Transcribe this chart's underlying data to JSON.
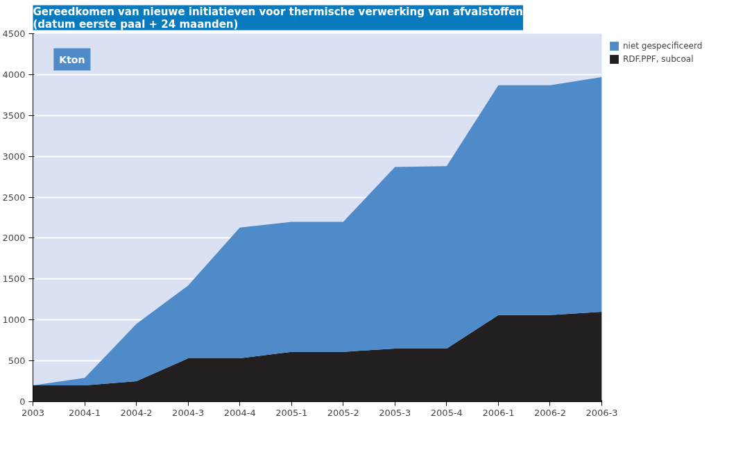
{
  "chart_data": {
    "type": "area",
    "title": "Gereedkomen van nieuwe initiatieven voor thermische verwerking van afvalstoffen\n(datum eerste paal + 24 maanden)",
    "categories": [
      "2003",
      "2004-1",
      "2004-2",
      "2004-3",
      "2004-4",
      "2005-1",
      "2005-2",
      "2005-3",
      "2005-4",
      "2006-1",
      "2006-2",
      "2006-3"
    ],
    "stacked": true,
    "series": [
      {
        "name": "RDF.PPF, subcoal",
        "color": "#231f20",
        "values": [
          200,
          200,
          250,
          530,
          530,
          610,
          610,
          650,
          650,
          1060,
          1060,
          1100
        ]
      },
      {
        "name": "niet gespecificeerd",
        "color": "#4f8ac9",
        "values": [
          0,
          90,
          700,
          890,
          1600,
          1590,
          1590,
          2220,
          2230,
          2810,
          2810,
          2870
        ]
      }
    ],
    "ylim": [
      0,
      4500
    ],
    "yticks": [
      0,
      500,
      1000,
      1500,
      2000,
      2500,
      3000,
      3500,
      4000,
      4500
    ],
    "grid": "y",
    "legend": "top right",
    "annotations": [
      "Kton"
    ]
  }
}
